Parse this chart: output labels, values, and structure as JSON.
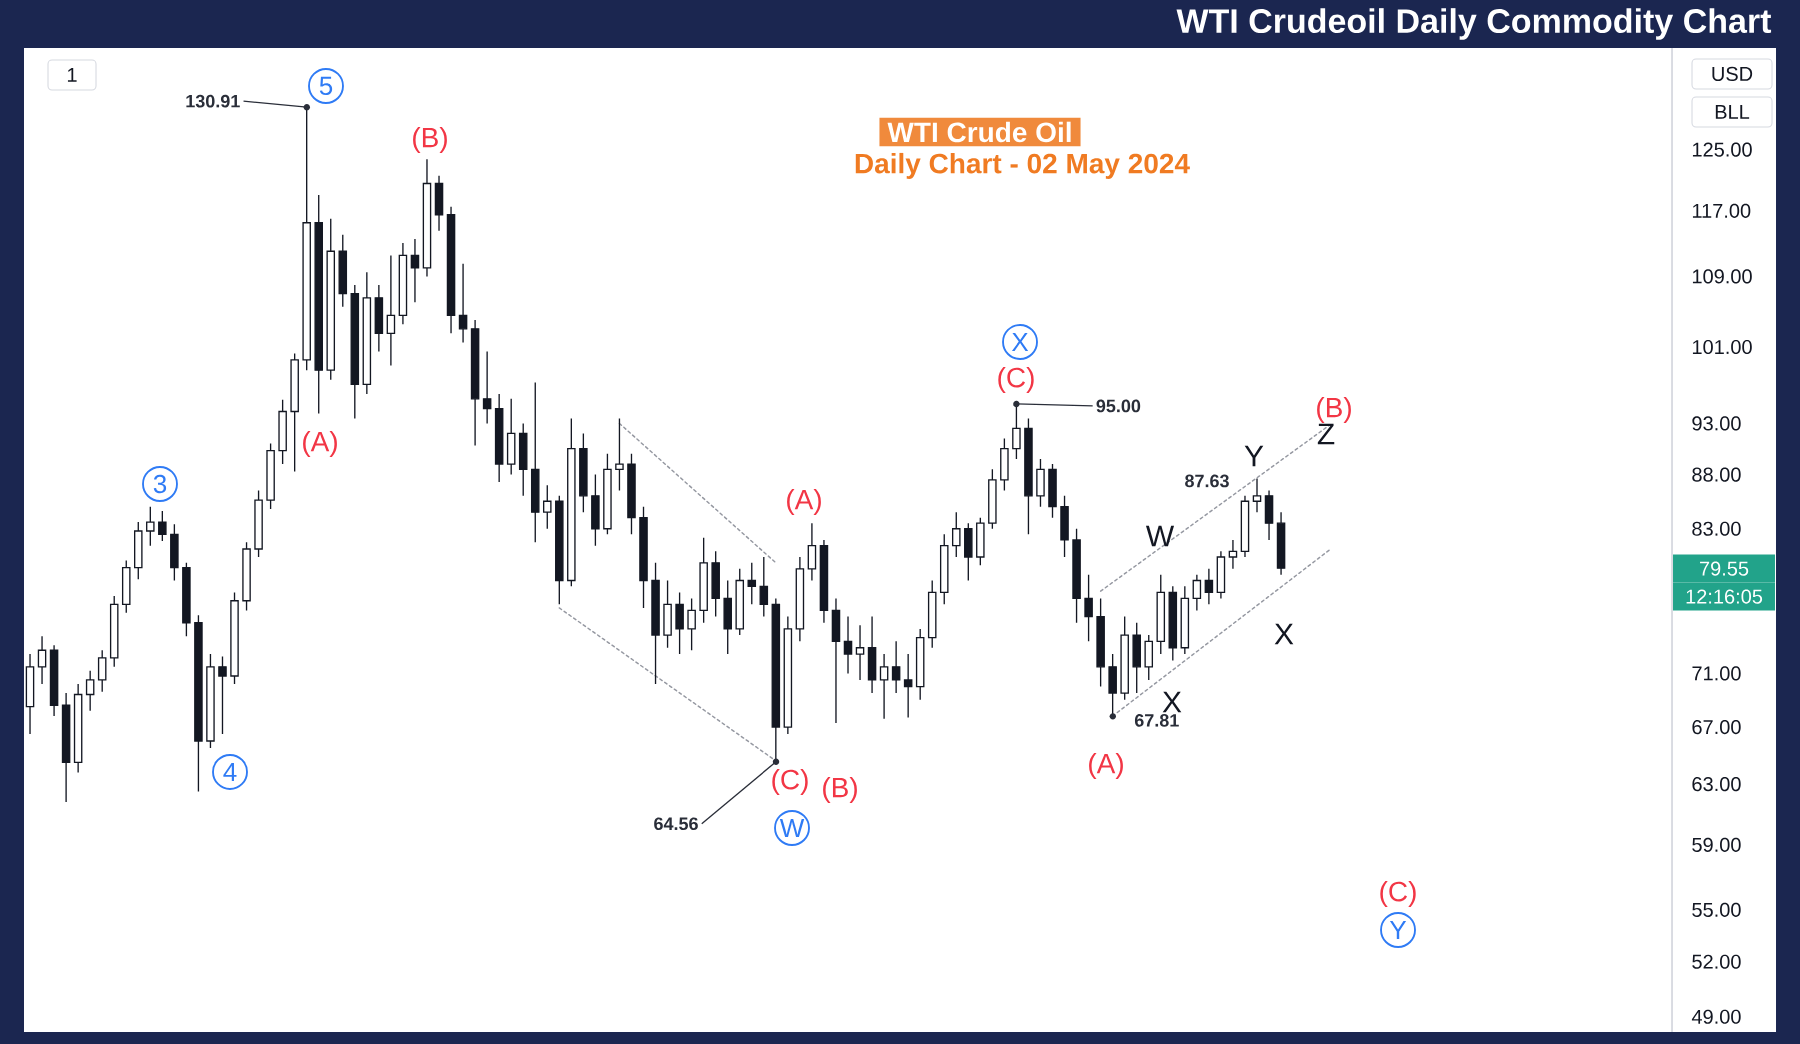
{
  "chart_data": {
    "type": "candlestick",
    "title": "WTI Crudeoil Daily Commodity Chart",
    "categories": [
      null,
      null,
      null,
      null,
      null,
      null,
      null,
      null,
      null,
      null,
      null,
      null,
      null,
      null,
      null,
      null,
      null,
      null,
      null,
      null,
      null,
      null,
      null,
      null,
      null,
      null,
      null,
      null,
      null,
      null,
      null,
      null,
      null,
      null,
      null,
      null,
      null,
      null,
      null,
      null,
      null,
      null,
      null,
      null,
      null,
      null,
      null,
      null,
      null,
      null,
      null,
      null,
      null,
      null,
      null,
      null,
      null,
      null,
      null,
      null,
      null,
      null,
      null,
      null,
      null,
      null,
      null,
      null,
      null,
      null,
      null,
      null,
      null,
      null,
      null,
      null,
      null,
      null,
      null,
      null,
      null,
      null,
      null,
      null,
      null,
      null,
      null,
      null,
      null,
      null,
      null,
      null,
      null,
      null,
      null,
      null,
      null,
      null,
      null,
      null,
      null,
      null,
      null,
      null,
      null,
      null,
      null,
      null,
      null,
      null,
      null,
      null,
      null,
      null,
      null,
      null,
      null,
      null,
      null,
      null,
      null,
      null,
      null,
      null,
      null,
      null,
      null,
      null,
      null,
      null,
      null,
      null,
      null,
      null,
      null,
      null,
      null
    ],
    "ohlc": [
      [
        68.5,
        72.5,
        66.5,
        71.5
      ],
      [
        71.5,
        73.9,
        70.2,
        72.8
      ],
      [
        72.8,
        73.2,
        67.8,
        68.6
      ],
      [
        68.6,
        69.5,
        61.8,
        64.5
      ],
      [
        64.5,
        70.2,
        63.8,
        69.4
      ],
      [
        69.4,
        71.2,
        68.2,
        70.5
      ],
      [
        70.5,
        72.8,
        69.6,
        72.2
      ],
      [
        72.2,
        77.2,
        71.5,
        76.5
      ],
      [
        76.5,
        80.2,
        75.8,
        79.6
      ],
      [
        79.6,
        83.6,
        78.6,
        82.8
      ],
      [
        82.8,
        85.0,
        81.5,
        83.6
      ],
      [
        83.6,
        84.6,
        81.9,
        82.5
      ],
      [
        82.5,
        83.4,
        78.5,
        79.6
      ],
      [
        79.6,
        80.0,
        73.9,
        75.0
      ],
      [
        75.0,
        75.6,
        62.5,
        66.0
      ],
      [
        66.0,
        72.5,
        65.5,
        71.5
      ],
      [
        71.5,
        72.3,
        66.5,
        70.8
      ],
      [
        70.8,
        77.5,
        70.2,
        76.8
      ],
      [
        76.8,
        81.8,
        76.0,
        81.2
      ],
      [
        81.2,
        86.5,
        80.5,
        85.6
      ],
      [
        85.6,
        91.0,
        84.8,
        90.3
      ],
      [
        90.3,
        95.4,
        89.0,
        94.2
      ],
      [
        94.2,
        100.3,
        88.3,
        99.6
      ],
      [
        99.6,
        130.91,
        98.5,
        115.5
      ],
      [
        115.5,
        119.0,
        94.0,
        98.5
      ],
      [
        98.5,
        116.0,
        97.5,
        112.0
      ],
      [
        112.0,
        114.0,
        105.5,
        107.0
      ],
      [
        107.0,
        108.0,
        93.5,
        97.0
      ],
      [
        97.0,
        109.5,
        96.0,
        106.5
      ],
      [
        106.5,
        108.0,
        100.5,
        102.5
      ],
      [
        102.5,
        111.5,
        99.0,
        104.5
      ],
      [
        104.5,
        113.0,
        103.5,
        111.5
      ],
      [
        111.5,
        113.5,
        106.0,
        110.0
      ],
      [
        110.0,
        123.7,
        109.0,
        120.5
      ],
      [
        120.5,
        121.5,
        114.5,
        116.5
      ],
      [
        116.5,
        117.5,
        102.5,
        104.5
      ],
      [
        104.5,
        110.5,
        101.5,
        103.0
      ],
      [
        103.0,
        104.0,
        90.8,
        95.5
      ],
      [
        95.5,
        100.5,
        93.0,
        94.5
      ],
      [
        94.5,
        96.0,
        87.3,
        89.0
      ],
      [
        89.0,
        95.5,
        88.0,
        92.0
      ],
      [
        92.0,
        93.0,
        86.0,
        88.5
      ],
      [
        88.5,
        97.2,
        81.8,
        84.5
      ],
      [
        84.5,
        87.0,
        83.0,
        85.5
      ],
      [
        85.5,
        86.0,
        76.5,
        78.5
      ],
      [
        78.5,
        93.5,
        78.0,
        90.5
      ],
      [
        90.5,
        92.0,
        84.5,
        86.0
      ],
      [
        86.0,
        88.0,
        81.5,
        83.0
      ],
      [
        83.0,
        90.0,
        82.5,
        88.5
      ],
      [
        88.5,
        93.5,
        86.5,
        89.0
      ],
      [
        89.0,
        90.0,
        82.5,
        84.0
      ],
      [
        84.0,
        85.0,
        76.2,
        78.5
      ],
      [
        78.5,
        80.0,
        70.2,
        74.0
      ],
      [
        74.0,
        78.5,
        73.0,
        76.5
      ],
      [
        76.5,
        77.5,
        72.5,
        74.5
      ],
      [
        74.5,
        77.0,
        72.8,
        76.0
      ],
      [
        76.0,
        82.2,
        75.0,
        80.0
      ],
      [
        80.0,
        81.0,
        75.5,
        77.0
      ],
      [
        77.0,
        78.5,
        72.5,
        74.5
      ],
      [
        74.5,
        79.5,
        74.0,
        78.5
      ],
      [
        78.5,
        80.0,
        76.5,
        78.0
      ],
      [
        78.0,
        80.5,
        75.5,
        76.5
      ],
      [
        76.5,
        77.0,
        64.56,
        67.0
      ],
      [
        67.0,
        75.5,
        66.5,
        74.5
      ],
      [
        74.5,
        80.5,
        73.5,
        79.5
      ],
      [
        79.5,
        83.5,
        78.5,
        81.5
      ],
      [
        81.5,
        82.0,
        75.0,
        76.0
      ],
      [
        76.0,
        77.0,
        67.3,
        73.5
      ],
      [
        73.5,
        75.5,
        71.0,
        72.5
      ],
      [
        72.5,
        74.8,
        70.5,
        73.0
      ],
      [
        73.0,
        75.5,
        69.5,
        70.5
      ],
      [
        70.5,
        72.5,
        67.6,
        71.5
      ],
      [
        71.5,
        73.5,
        69.5,
        70.5
      ],
      [
        70.5,
        72.5,
        67.7,
        70.0
      ],
      [
        70.0,
        74.5,
        69.0,
        73.8
      ],
      [
        73.8,
        78.5,
        73.0,
        77.5
      ],
      [
        77.5,
        82.5,
        76.5,
        81.5
      ],
      [
        81.5,
        84.5,
        80.5,
        83.0
      ],
      [
        83.0,
        83.5,
        78.5,
        80.5
      ],
      [
        80.5,
        84.0,
        79.8,
        83.5
      ],
      [
        83.5,
        88.5,
        83.0,
        87.5
      ],
      [
        87.5,
        91.5,
        86.5,
        90.5
      ],
      [
        90.5,
        95.0,
        89.5,
        92.5
      ],
      [
        92.5,
        93.5,
        82.5,
        86.0
      ],
      [
        86.0,
        89.5,
        85.0,
        88.5
      ],
      [
        88.5,
        89.0,
        84.0,
        85.0
      ],
      [
        85.0,
        86.0,
        80.5,
        82.0
      ],
      [
        82.0,
        83.0,
        75.0,
        77.0
      ],
      [
        77.0,
        79.0,
        73.5,
        75.5
      ],
      [
        75.5,
        77.0,
        70.0,
        71.5
      ],
      [
        71.5,
        72.5,
        67.81,
        69.5
      ],
      [
        69.5,
        75.5,
        69.0,
        74.0
      ],
      [
        74.0,
        75.0,
        69.5,
        71.5
      ],
      [
        71.5,
        74.0,
        70.5,
        73.5
      ],
      [
        73.5,
        79.0,
        72.5,
        77.5
      ],
      [
        77.5,
        78.0,
        72.0,
        73.0
      ],
      [
        73.0,
        78.0,
        72.5,
        77.0
      ],
      [
        77.0,
        79.0,
        76.0,
        78.5
      ],
      [
        78.5,
        79.5,
        76.5,
        77.5
      ],
      [
        77.5,
        81.0,
        77.0,
        80.5
      ],
      [
        80.5,
        82.0,
        79.5,
        81.0
      ],
      [
        81.0,
        86.0,
        80.5,
        85.5
      ],
      [
        85.5,
        87.63,
        84.5,
        86.0
      ],
      [
        86.0,
        86.5,
        82.0,
        83.5
      ],
      [
        83.5,
        84.5,
        79.0,
        79.55
      ],
      null,
      null,
      null,
      null,
      null,
      null,
      null,
      null,
      null,
      null,
      null,
      null,
      null,
      null,
      null,
      null,
      null,
      null,
      null,
      null,
      null,
      null,
      null,
      null,
      null,
      null,
      null,
      null,
      null,
      null,
      null,
      null
    ],
    "color": "#131722",
    "log": true,
    "ylim": [
      48.2,
      139.5
    ],
    "yticks": [
      {
        "value": 49,
        "label": "49.00"
      },
      {
        "value": 52,
        "label": "52.00"
      },
      {
        "value": 55,
        "label": "55.00"
      },
      {
        "value": 59,
        "label": "59.00"
      },
      {
        "value": 63,
        "label": "63.00"
      },
      {
        "value": 67,
        "label": "67.00"
      },
      {
        "value": 71,
        "label": "71.00"
      },
      {
        "value": 83,
        "label": "83.00"
      },
      {
        "value": 88,
        "label": "88.00"
      },
      {
        "value": 93,
        "label": "93.00"
      },
      {
        "value": 101,
        "label": "101.00"
      },
      {
        "value": 109,
        "label": "109.00"
      },
      {
        "value": 117,
        "label": "117.00"
      },
      {
        "value": 125,
        "label": "125.00"
      }
    ],
    "series": [
      {
        "type": "line",
        "color": "#9598a1",
        "line_style": "dotted",
        "values": [
          null,
          null,
          null,
          null,
          null,
          null,
          null,
          null,
          null,
          null,
          null,
          null,
          null,
          null,
          null,
          null,
          null,
          null,
          null,
          null,
          null,
          null,
          null,
          null,
          null,
          null,
          null,
          null,
          null,
          null,
          null,
          null,
          null,
          null,
          null,
          null,
          null,
          null,
          null,
          null,
          null,
          null,
          null,
          null,
          null,
          null,
          null,
          null,
          null,
          93.0,
          null,
          null,
          null,
          null,
          null,
          null,
          null,
          null,
          null,
          null,
          null,
          null,
          80.0,
          null,
          null,
          null,
          null,
          null,
          null,
          null,
          null,
          null,
          null,
          null,
          null,
          null,
          null,
          null,
          null,
          null,
          null,
          null,
          null,
          null,
          null,
          null,
          null,
          null,
          null,
          null,
          null,
          null,
          null,
          null,
          null,
          null,
          null,
          null,
          null,
          null,
          null,
          null,
          null,
          null,
          null,
          null,
          null,
          null,
          null,
          null,
          null,
          null,
          null,
          null,
          null,
          null,
          null,
          null,
          null,
          null,
          null,
          null,
          null,
          null,
          null,
          null,
          null,
          null,
          null,
          null,
          null,
          null,
          null,
          null,
          null,
          null,
          null
        ]
      },
      {
        "type": "line",
        "color": "#9598a1",
        "line_style": "dotted",
        "values": [
          null,
          null,
          null,
          null,
          null,
          null,
          null,
          null,
          null,
          null,
          null,
          null,
          null,
          null,
          null,
          null,
          null,
          null,
          null,
          null,
          null,
          null,
          null,
          null,
          null,
          null,
          null,
          null,
          null,
          null,
          null,
          null,
          null,
          null,
          null,
          null,
          null,
          null,
          null,
          null,
          null,
          null,
          null,
          null,
          76.2,
          null,
          null,
          null,
          null,
          null,
          null,
          null,
          null,
          null,
          null,
          null,
          null,
          null,
          null,
          null,
          null,
          null,
          64.6,
          null,
          null,
          null,
          null,
          null,
          null,
          null,
          null,
          null,
          null,
          null,
          null,
          null,
          null,
          null,
          null,
          null,
          null,
          null,
          null,
          null,
          null,
          null,
          null,
          null,
          null,
          null,
          null,
          null,
          null,
          null,
          null,
          null,
          null,
          null,
          null,
          null,
          null,
          null,
          null,
          null,
          null,
          null,
          null,
          null,
          null,
          null,
          null,
          null,
          null,
          null,
          null,
          null,
          null,
          null,
          null,
          null,
          null,
          null,
          null,
          null,
          null,
          null,
          null,
          null,
          null,
          null,
          null,
          null,
          null,
          null,
          null,
          null,
          null
        ]
      },
      {
        "type": "line",
        "color": "#9598a1",
        "line_style": "dotted",
        "values": [
          null,
          null,
          null,
          null,
          null,
          null,
          null,
          null,
          null,
          null,
          null,
          null,
          null,
          null,
          null,
          null,
          null,
          null,
          null,
          null,
          null,
          null,
          null,
          null,
          null,
          null,
          null,
          null,
          null,
          null,
          null,
          null,
          null,
          null,
          null,
          null,
          null,
          null,
          null,
          null,
          null,
          null,
          null,
          null,
          null,
          null,
          null,
          null,
          null,
          null,
          null,
          null,
          null,
          null,
          null,
          null,
          null,
          null,
          null,
          null,
          null,
          null,
          null,
          null,
          null,
          null,
          null,
          null,
          null,
          null,
          null,
          null,
          null,
          null,
          null,
          null,
          null,
          null,
          null,
          null,
          null,
          null,
          null,
          null,
          null,
          null,
          null,
          null,
          null,
          77.6,
          null,
          null,
          null,
          null,
          null,
          null,
          null,
          null,
          null,
          null,
          null,
          null,
          null,
          null,
          null,
          null,
          null,
          null,
          92.8,
          null,
          null,
          null,
          null,
          null,
          null,
          null,
          null,
          null,
          null,
          null,
          null,
          null,
          null,
          null,
          null,
          null,
          null,
          null,
          null,
          null,
          null,
          null,
          null,
          null,
          null,
          null,
          null
        ]
      },
      {
        "type": "line",
        "color": "#9598a1",
        "line_style": "dotted",
        "values": [
          null,
          null,
          null,
          null,
          null,
          null,
          null,
          null,
          null,
          null,
          null,
          null,
          null,
          null,
          null,
          null,
          null,
          null,
          null,
          null,
          null,
          null,
          null,
          null,
          null,
          null,
          null,
          null,
          null,
          null,
          null,
          null,
          null,
          null,
          null,
          null,
          null,
          null,
          null,
          null,
          null,
          null,
          null,
          null,
          null,
          null,
          null,
          null,
          null,
          null,
          null,
          null,
          null,
          null,
          null,
          null,
          null,
          null,
          null,
          null,
          null,
          null,
          null,
          null,
          null,
          null,
          null,
          null,
          null,
          null,
          null,
          null,
          null,
          null,
          null,
          null,
          null,
          null,
          null,
          null,
          null,
          null,
          null,
          null,
          null,
          null,
          null,
          null,
          null,
          null,
          67.8,
          null,
          null,
          null,
          null,
          null,
          null,
          null,
          null,
          null,
          null,
          null,
          null,
          null,
          null,
          null,
          null,
          null,
          81.1,
          null,
          null,
          null,
          null,
          null,
          null,
          null,
          null,
          null,
          null,
          null,
          null,
          null,
          null,
          null,
          null,
          null,
          null,
          null,
          null,
          null,
          null,
          null,
          null,
          null,
          null,
          null,
          null
        ]
      }
    ],
    "annotations": [
      "1",
      "USD",
      "BLL",
      "WTI Crude Oil",
      "Daily Chart - 02 May 2024",
      "130.91",
      "64.56",
      "95.00",
      "87.63",
      "67.81",
      "79.55",
      "12:16:05",
      "3",
      "4",
      "5",
      "(A)",
      "(B)",
      "(C)",
      "W",
      "(A)",
      "(B)",
      "(C)",
      "X",
      "(A)",
      "W",
      "X",
      "Y",
      "X",
      "(B)",
      "Z",
      "(C)",
      "Y"
    ]
  }
}
